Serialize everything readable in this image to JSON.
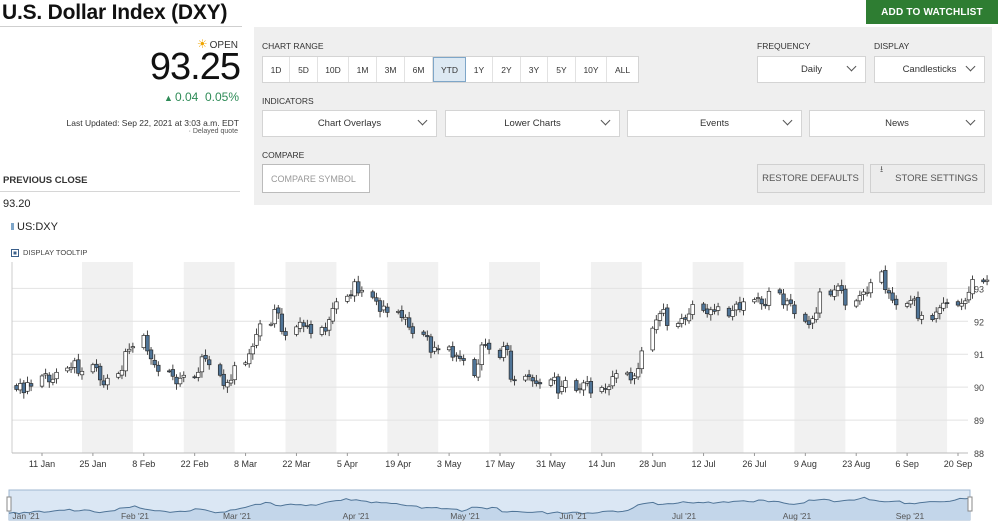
{
  "header": {
    "title": "U.S. Dollar Index (DXY)",
    "watchlist_label": "ADD TO WATCHLIST"
  },
  "quote": {
    "status": "OPEN",
    "price": "93.25",
    "change": "0.04",
    "change_pct": "0.05%",
    "last_updated": "Last Updated: Sep 22, 2021 at 3:03 a.m. EDT",
    "delayed": "Delayed quote",
    "prev_close_label": "PREVIOUS CLOSE",
    "prev_close": "93.20",
    "up_color": "#2e8b57",
    "sun_icon": "sun-icon"
  },
  "controls": {
    "chart_range_label": "CHART RANGE",
    "ranges": [
      "1D",
      "5D",
      "10D",
      "1M",
      "3M",
      "6M",
      "YTD",
      "1Y",
      "2Y",
      "3Y",
      "5Y",
      "10Y",
      "ALL"
    ],
    "active_range": "YTD",
    "frequency_label": "FREQUENCY",
    "frequency": "Daily",
    "display_label": "DISPLAY",
    "display": "Candlesticks",
    "indicators_label": "INDICATORS",
    "indicators": [
      "Chart Overlays",
      "Lower Charts",
      "Events",
      "News"
    ],
    "compare_label": "COMPARE",
    "compare_placeholder": "COMPARE SYMBOL",
    "restore_label": "RESTORE DEFAULTS",
    "store_label": "STORE SETTINGS"
  },
  "legend": {
    "symbol": "US:DXY",
    "tooltip_label": "DISPLAY TOOLTIP"
  },
  "chart_data": {
    "type": "candlestick",
    "series_name": "US:DXY",
    "ylim": [
      88,
      93.8
    ],
    "yticks": [
      93,
      92,
      91,
      90,
      89,
      88
    ],
    "x_labels": [
      "11 Jan",
      "25 Jan",
      "8 Feb",
      "22 Feb",
      "8 Mar",
      "22 Mar",
      "5 Apr",
      "19 Apr",
      "3 May",
      "17 May",
      "31 May",
      "14 Jun",
      "28 Jun",
      "12 Jul",
      "26 Jul",
      "9 Aug",
      "23 Aug",
      "6 Sep",
      "20 Sep"
    ],
    "x_label_dates": [
      "2021-01-11",
      "2021-01-25",
      "2021-02-08",
      "2021-02-22",
      "2021-03-08",
      "2021-03-22",
      "2021-04-05",
      "2021-04-19",
      "2021-05-03",
      "2021-05-17",
      "2021-05-31",
      "2021-06-14",
      "2021-06-28",
      "2021-07-12",
      "2021-07-26",
      "2021-08-09",
      "2021-08-23",
      "2021-09-06",
      "2021-09-20"
    ],
    "up_color": "#ffffff",
    "down_color": "#4f7497",
    "closes": [
      89.93,
      90.11,
      89.83,
      90.14,
      90.03,
      90.34,
      90.41,
      90.16,
      90.24,
      90.45,
      90.58,
      90.6,
      90.8,
      90.42,
      90.48,
      90.68,
      90.59,
      90.22,
      90.07,
      90.27,
      90.41,
      90.51,
      91.08,
      91.15,
      91.23,
      91.57,
      91.1,
      90.86,
      90.68,
      90.48,
      90.49,
      90.33,
      90.1,
      90.27,
      90.36,
      90.31,
      90.45,
      90.92,
      90.86,
      90.68,
      90.36,
      90.05,
      90.14,
      90.21,
      90.65,
      90.74,
      91.01,
      91.24,
      91.6,
      91.92,
      91.91,
      92.36,
      92.25,
      91.69,
      91.57,
      91.83,
      91.97,
      91.85,
      91.86,
      91.63,
      91.81,
      91.7,
      92.05,
      92.39,
      92.59,
      92.76,
      92.8,
      93.2,
      92.86,
      92.94,
      92.73,
      92.61,
      92.3,
      92.46,
      92.27,
      92.3,
      92.11,
      92.12,
      91.82,
      91.63,
      91.6,
      91.53,
      91.06,
      91.21,
      91.15,
      91.22,
      90.91,
      90.97,
      90.87,
      90.81,
      90.35,
      90.7,
      91.28,
      91.29,
      91.15,
      90.9,
      91.23,
      91.14,
      90.24,
      90.2,
      90.33,
      90.32,
      90.19,
      90.11,
      90.1,
      90.22,
      90.3,
      89.82,
      90.02,
      90.2,
      89.9,
      89.96,
      90.13,
      90.16,
      89.82,
      89.99,
      89.93,
      90.01,
      90.32,
      90.41,
      90.43,
      90.22,
      90.34,
      90.56,
      91.1,
      91.79,
      92.04,
      92.23,
      92.36,
      91.87,
      91.93,
      92.08,
      92.06,
      92.22,
      92.51,
      92.33,
      92.23,
      92.35,
      92.3,
      92.44,
      92.16,
      92.33,
      92.52,
      92.36,
      92.59,
      92.66,
      92.72,
      92.53,
      92.47,
      92.91,
      92.86,
      92.5,
      92.62,
      92.54,
      92.23,
      92.0,
      91.9,
      92.08,
      92.25,
      92.89,
      92.8,
      92.95,
      93.07,
      92.93,
      92.49,
      92.62,
      92.78,
      92.89,
      92.88,
      93.17,
      93.5,
      92.96,
      92.86,
      92.64,
      92.5,
      92.54,
      92.63,
      92.68,
      92.09,
      92.18,
      92.05,
      92.28,
      92.41,
      92.55,
      92.55,
      92.49,
      92.54,
      92.62,
      92.88,
      93.27,
      93.2,
      93.25
    ]
  },
  "navigator": {
    "labels": [
      "Jan '21",
      "Feb '21",
      "Mar '21",
      "Apr '21",
      "May '21",
      "Jun '21",
      "Jul '21",
      "Aug '21",
      "Sep '21"
    ]
  }
}
